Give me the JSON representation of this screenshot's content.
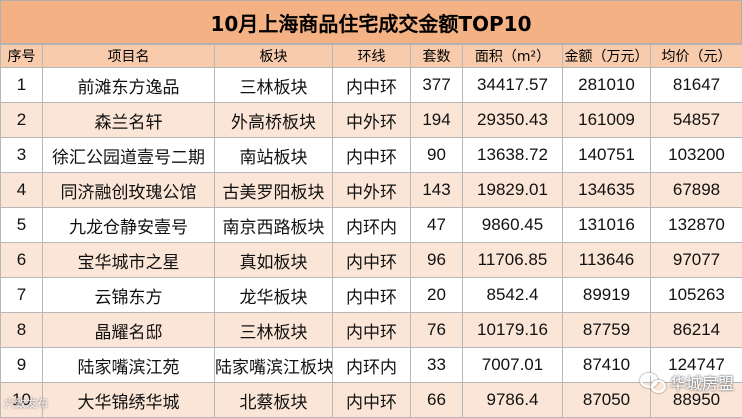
{
  "title": "10月上海商品住宅成交金额TOP10",
  "columns": [
    "序号",
    "项目名",
    "板块",
    "环线",
    "套数",
    "面积（m²）",
    "金额（万元）",
    "均价（元）"
  ],
  "rows": [
    {
      "rank": "1",
      "name": "前滩东方逸品",
      "area": "三林板块",
      "ring": "内中环",
      "units": "377",
      "size": "34417.57",
      "amount": "281010",
      "price": "81647"
    },
    {
      "rank": "2",
      "name": "森兰名轩",
      "area": "外高桥板块",
      "ring": "中外环",
      "units": "194",
      "size": "29350.43",
      "amount": "161009",
      "price": "54857"
    },
    {
      "rank": "3",
      "name": "徐汇公园道壹号二期",
      "area": "南站板块",
      "ring": "内中环",
      "units": "90",
      "size": "13638.72",
      "amount": "140751",
      "price": "103200"
    },
    {
      "rank": "4",
      "name": "同济融创玫瑰公馆",
      "area": "古美罗阳板块",
      "ring": "中外环",
      "units": "143",
      "size": "19829.01",
      "amount": "134635",
      "price": "67898"
    },
    {
      "rank": "5",
      "name": "九龙仓静安壹号",
      "area": "南京西路板块",
      "ring": "内环内",
      "units": "47",
      "size": "9860.45",
      "amount": "131016",
      "price": "132870"
    },
    {
      "rank": "6",
      "name": "宝华城市之星",
      "area": "真如板块",
      "ring": "内中环",
      "units": "96",
      "size": "11706.85",
      "amount": "113646",
      "price": "97077"
    },
    {
      "rank": "7",
      "name": "云锦东方",
      "area": "龙华板块",
      "ring": "内中环",
      "units": "20",
      "size": "8542.4",
      "amount": "89919",
      "price": "105263"
    },
    {
      "rank": "8",
      "name": "晶耀名邸",
      "area": "三林板块",
      "ring": "内中环",
      "units": "76",
      "size": "10179.16",
      "amount": "87759",
      "price": "86214"
    },
    {
      "rank": "9",
      "name": "陆家嘴滨江苑",
      "area": "陆家嘴滨江板块",
      "ring": "内环内",
      "units": "33",
      "size": "7007.01",
      "amount": "87410",
      "price": "124747"
    },
    {
      "rank": "10",
      "name": "大华锦绣华城",
      "area": "北蔡板块",
      "ring": "内中环",
      "units": "66",
      "size": "9786.4",
      "amount": "87050",
      "price": "88950"
    }
  ],
  "watermark": "华城房盟",
  "corner_mark": "六致发布"
}
